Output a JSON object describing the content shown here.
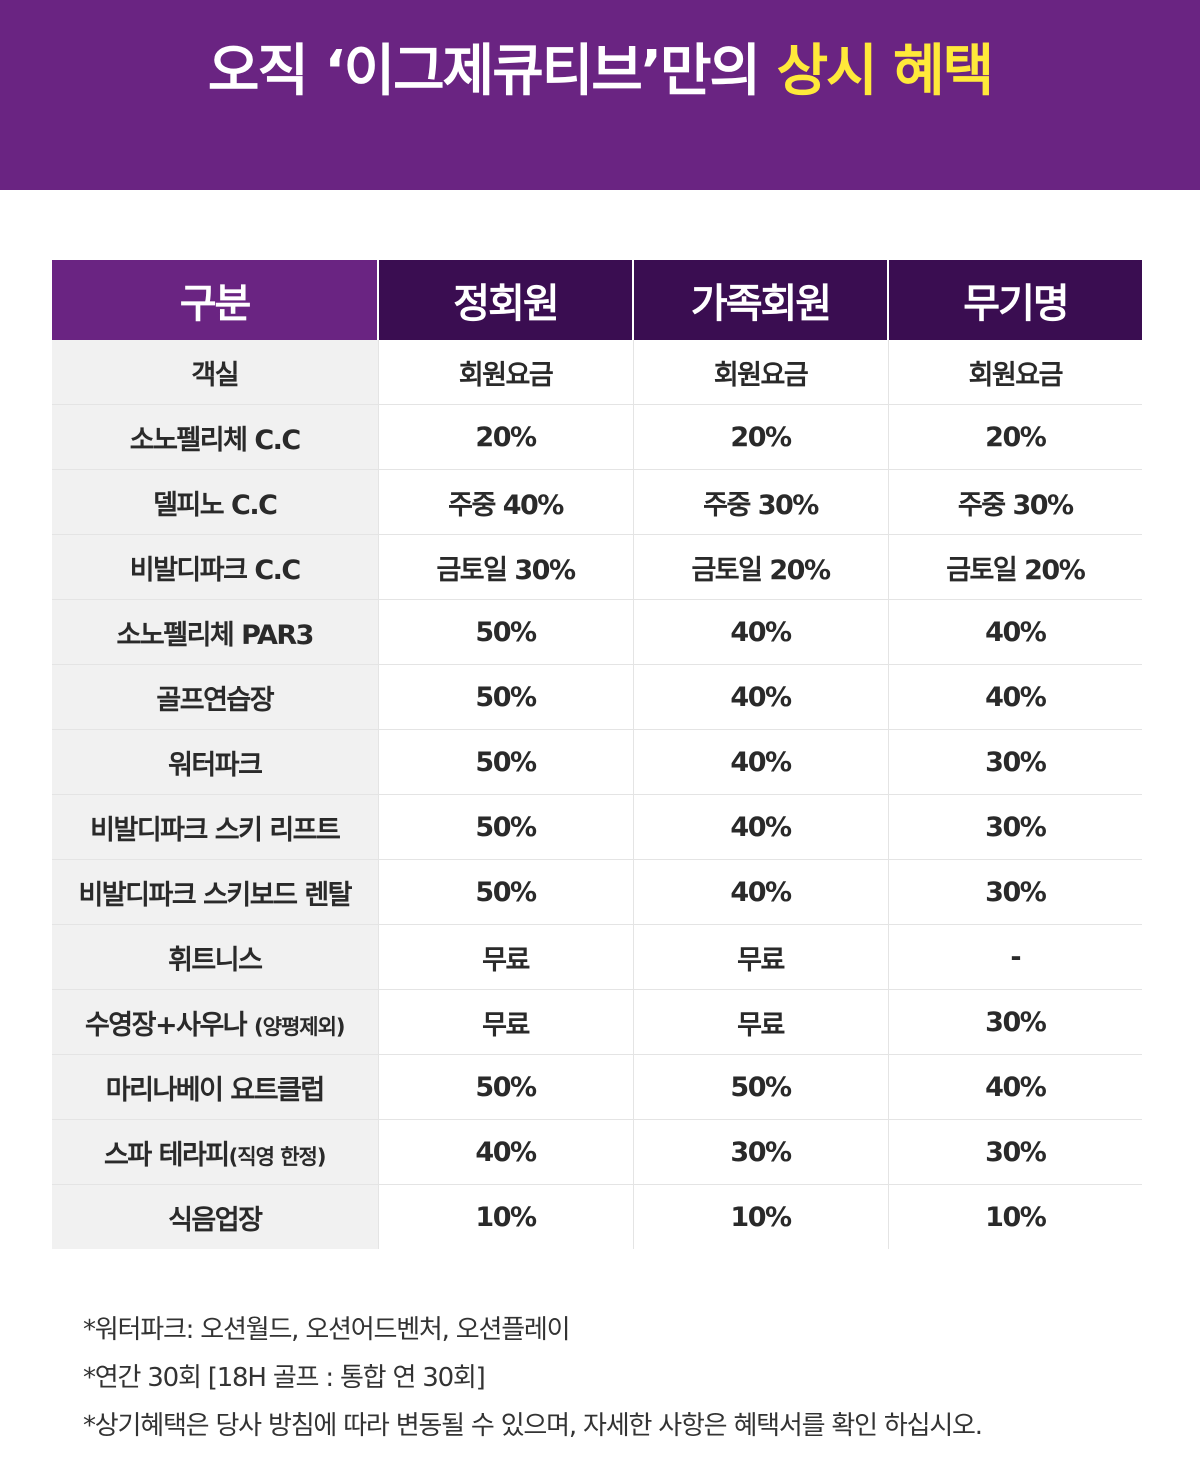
{
  "banner": {
    "title_main": "오직 ‘이그제큐티브’만의 ",
    "title_highlight": "상시 혜택",
    "background_color": "#6a2482",
    "highlight_color": "#ffe93a"
  },
  "table": {
    "header_colors": {
      "first": "#6a2482",
      "plans": "#3a0d51"
    },
    "headers": [
      "구분",
      "정회원",
      "가족회원",
      "무기명"
    ],
    "rows": [
      {
        "label": "객실",
        "label_note": "",
        "values": [
          "회원요금",
          "회원요금",
          "회원요금"
        ]
      },
      {
        "label": "소노펠리체 C.C",
        "label_note": "",
        "values": [
          "20%",
          "20%",
          "20%"
        ]
      },
      {
        "label": "델피노 C.C",
        "label_note": "",
        "values": [
          "주중 40%",
          "주중 30%",
          "주중 30%"
        ]
      },
      {
        "label": "비발디파크 C.C",
        "label_note": "",
        "values": [
          "금토일 30%",
          "금토일 20%",
          "금토일 20%"
        ]
      },
      {
        "label": "소노펠리체 PAR3",
        "label_note": "",
        "values": [
          "50%",
          "40%",
          "40%"
        ]
      },
      {
        "label": "골프연습장",
        "label_note": "",
        "values": [
          "50%",
          "40%",
          "40%"
        ]
      },
      {
        "label": "워터파크",
        "label_note": "",
        "values": [
          "50%",
          "40%",
          "30%"
        ]
      },
      {
        "label": "비발디파크 스키 리프트",
        "label_note": "",
        "values": [
          "50%",
          "40%",
          "30%"
        ]
      },
      {
        "label": "비발디파크 스키보드 렌탈",
        "label_note": "",
        "values": [
          "50%",
          "40%",
          "30%"
        ]
      },
      {
        "label": "휘트니스",
        "label_note": "",
        "values": [
          "무료",
          "무료",
          "-"
        ]
      },
      {
        "label": "수영장+사우나 ",
        "label_note": "(양평제외)",
        "values": [
          "무료",
          "무료",
          "30%"
        ]
      },
      {
        "label": "마리나베이 요트클럽",
        "label_note": "",
        "values": [
          "50%",
          "50%",
          "40%"
        ]
      },
      {
        "label": "스파 테라피",
        "label_note": "(직영 한정)",
        "values": [
          "40%",
          "30%",
          "30%"
        ]
      },
      {
        "label": "식음업장",
        "label_note": "",
        "values": [
          "10%",
          "10%",
          "10%"
        ]
      }
    ]
  },
  "footnotes": [
    "*워터파크: 오션월드, 오션어드벤처, 오션플레이",
    "*연간 30회 [18H 골프 : 통합  연 30회]",
    "*상기혜택은 당사 방침에 따라 변동될 수 있으며, 자세한 사항은 혜택서를 확인 하십시오."
  ]
}
